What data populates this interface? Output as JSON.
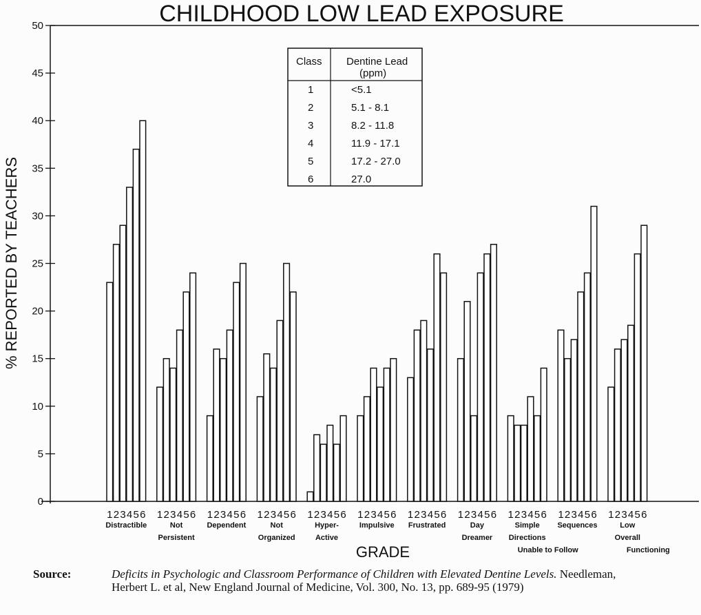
{
  "chart_data": {
    "type": "bar",
    "title": "CHILDHOOD LOW LEAD EXPOSURE",
    "xlabel": "GRADE",
    "ylabel": "% REPORTED BY TEACHERS",
    "ylim": [
      0,
      50
    ],
    "yticks": [
      0,
      5,
      10,
      15,
      20,
      25,
      30,
      35,
      40,
      45,
      50
    ],
    "class_labels": [
      "1",
      "2",
      "3",
      "4",
      "5",
      "6"
    ],
    "categories": [
      {
        "lines": [
          "Distractible"
        ],
        "values": [
          23,
          27,
          29,
          33,
          37,
          40
        ]
      },
      {
        "lines": [
          "Not",
          "Persistent"
        ],
        "values": [
          12,
          15,
          14,
          18,
          22,
          24
        ]
      },
      {
        "lines": [
          "Dependent"
        ],
        "values": [
          9,
          16,
          15,
          18,
          23,
          25
        ]
      },
      {
        "lines": [
          "Not",
          "Organized"
        ],
        "values": [
          11,
          15.5,
          14,
          19,
          25,
          22
        ]
      },
      {
        "lines": [
          "Hyper-",
          "Active"
        ],
        "values": [
          1,
          7,
          6,
          8,
          6,
          9
        ]
      },
      {
        "lines": [
          "Impulsive"
        ],
        "values": [
          9,
          11,
          14,
          12,
          14,
          15
        ]
      },
      {
        "lines": [
          "Frustrated"
        ],
        "values": [
          13,
          18,
          19,
          16,
          26,
          24
        ]
      },
      {
        "lines": [
          "Day",
          "Dreamer"
        ],
        "values": [
          15,
          21,
          9,
          24,
          26,
          27
        ]
      },
      {
        "lines": [
          "Simple",
          "Directions",
          "Unable to Follow"
        ],
        "values": [
          9,
          8,
          8,
          11,
          9,
          14
        ]
      },
      {
        "lines": [
          "Sequences"
        ],
        "values": [
          18,
          15,
          17,
          22,
          24,
          31
        ]
      },
      {
        "lines": [
          "Low",
          "Overall",
          "Functioning"
        ],
        "values": [
          12,
          16,
          17,
          18.5,
          26,
          29
        ]
      }
    ],
    "legend_table": {
      "headers": [
        "Class",
        "Dentine Lead (ppm)"
      ],
      "header_lines": [
        "Dentine Lead",
        "(ppm)"
      ],
      "rows": [
        [
          "1",
          "<5.1"
        ],
        [
          "2",
          "5.1 - 8.1"
        ],
        [
          "3",
          "8.2 - 11.8"
        ],
        [
          "4",
          "11.9 - 17.1"
        ],
        [
          "5",
          "17.2 - 27.0"
        ],
        [
          "6",
          "27.0"
        ]
      ],
      "placement": "top-center"
    }
  },
  "source": {
    "label": "Source:",
    "title_italic": "Deficits in Psychologic and Classroom Performance of Children with Elevated Dentine Levels.",
    "citation": "Needleman, Herbert L. et al, New England Journal of Medicine, Vol. 300, No. 13, pp. 689-95 (1979)"
  }
}
